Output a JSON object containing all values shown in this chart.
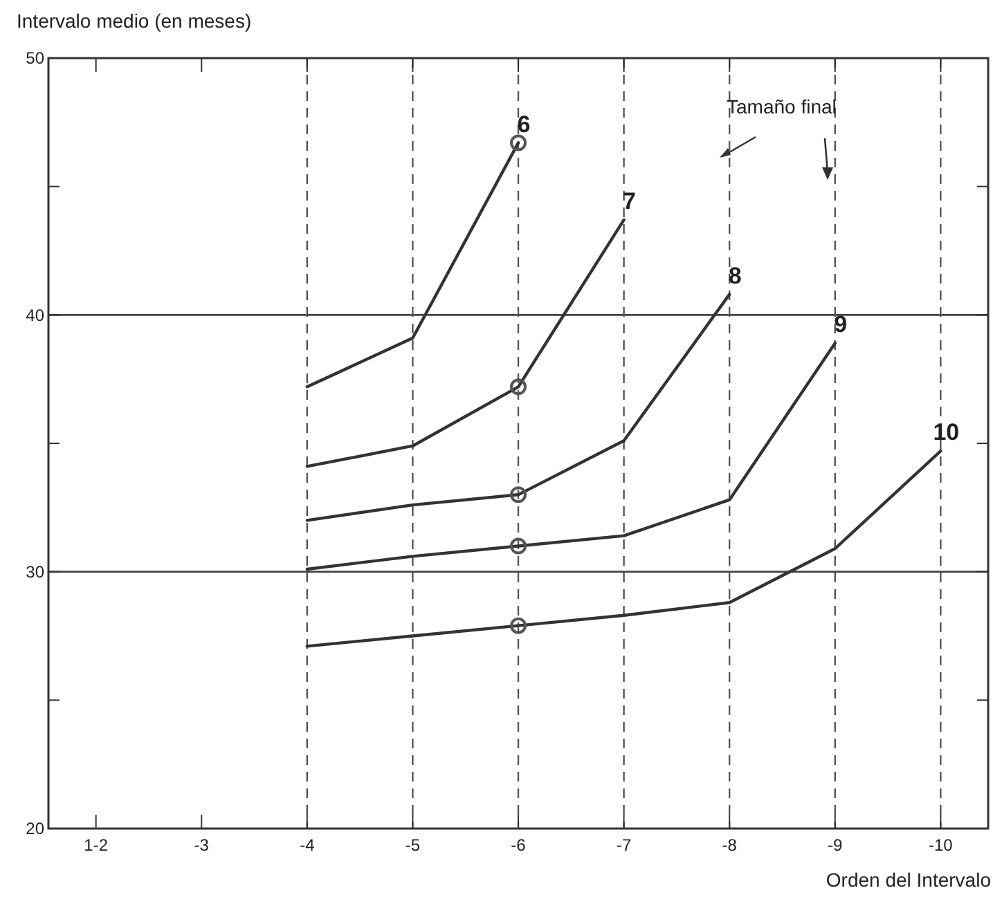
{
  "chart_data": {
    "type": "line",
    "ylabel": "Intervalo medio (en meses)",
    "xlabel": "Orden del Intervalo",
    "categories": [
      "1-2",
      "-3",
      "-4",
      "-5",
      "-6",
      "-7",
      "-8",
      "-9",
      "-10"
    ],
    "ylim": [
      20,
      50
    ],
    "yticks": [
      20,
      {
        "value": 25,
        "label": null
      },
      30,
      {
        "value": 35,
        "label": null
      },
      40,
      {
        "value": 45,
        "label": null
      },
      50
    ],
    "marker": "none",
    "line_style": "solid",
    "series": [
      {
        "name": "6",
        "color": "#333333",
        "values": [
          null,
          null,
          37.2,
          39.1,
          46.7,
          null,
          null,
          null,
          null
        ]
      },
      {
        "name": "7",
        "color": "#333333",
        "values": [
          null,
          null,
          34.1,
          34.9,
          37.2,
          43.7,
          null,
          null,
          null
        ]
      },
      {
        "name": "8",
        "color": "#333333",
        "values": [
          null,
          null,
          32.0,
          32.6,
          33.0,
          35.1,
          40.8,
          null,
          null
        ]
      },
      {
        "name": "9",
        "color": "#333333",
        "values": [
          null,
          null,
          30.1,
          30.6,
          31.0,
          31.4,
          32.8,
          38.9,
          null
        ]
      },
      {
        "name": "10",
        "color": "#333333",
        "values": [
          null,
          null,
          27.1,
          27.5,
          27.9,
          28.3,
          28.8,
          30.9,
          34.7
        ]
      },
      {
        "type": "scatter",
        "marker": "circle",
        "color": "#555555",
        "x": [
          "-6",
          "-6",
          "-6",
          "-6",
          "-6"
        ],
        "values": [
          46.7,
          37.2,
          33.0,
          31.0,
          27.9
        ]
      }
    ],
    "ref_lines": [
      {
        "axis": "y",
        "value": 30,
        "color": "#444444",
        "line_style": "solid"
      },
      {
        "axis": "y",
        "value": 40,
        "color": "#444444",
        "line_style": "solid"
      },
      {
        "axis": "x",
        "value": "-4",
        "color": "#555555",
        "line_style": "dashed"
      },
      {
        "axis": "x",
        "value": "-5",
        "color": "#555555",
        "line_style": "dashed"
      },
      {
        "axis": "x",
        "value": "-6",
        "color": "#555555",
        "line_style": "dashed"
      },
      {
        "axis": "x",
        "value": "-7",
        "color": "#555555",
        "line_style": "dashed"
      },
      {
        "axis": "x",
        "value": "-8",
        "color": "#555555",
        "line_style": "dashed"
      },
      {
        "axis": "x",
        "value": "-9",
        "color": "#555555",
        "line_style": "dashed"
      },
      {
        "axis": "x",
        "value": "-10",
        "color": "#555555",
        "line_style": "dashed"
      }
    ],
    "annotations": [
      "Tamaño final"
    ]
  }
}
